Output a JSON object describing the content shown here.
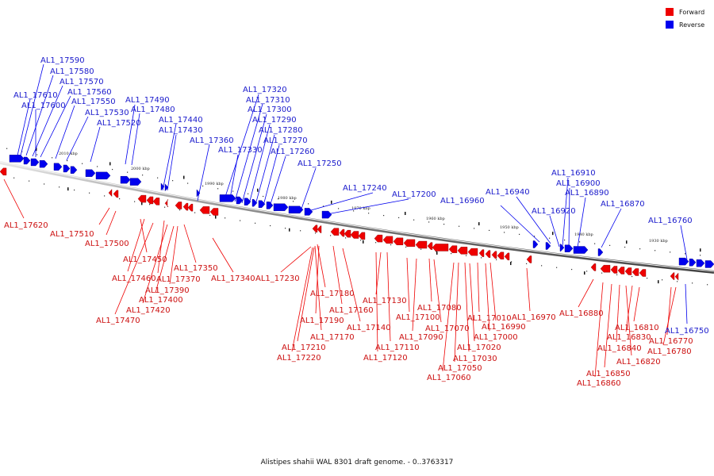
{
  "caption": "Alistipes shahii WAL 8301 draft genome. - 0..3763317",
  "legend": [
    {
      "label": "Forward",
      "color": "#ee0000"
    },
    {
      "label": "Reverse",
      "color": "#0000ee"
    }
  ],
  "scale_marks": [
    "2010 kbp",
    "2000 kbp",
    "1990 kbp",
    "1980 kbp",
    "1970 kbp",
    "1960 kbp",
    "1950 kbp",
    "1940 kbp",
    "1930 kbp"
  ],
  "reverse_genes": [
    "AL1_17590",
    "AL1_17580",
    "AL1_17570",
    "AL1_17560",
    "AL1_17610",
    "AL1_17550",
    "AL1_17600",
    "AL1_17530",
    "AL1_17520",
    "AL1_17490",
    "AL1_17480",
    "AL1_17440",
    "AL1_17430",
    "AL1_17360",
    "AL1_17320",
    "AL1_17310",
    "AL1_17300",
    "AL1_17290",
    "AL1_17280",
    "AL1_17270",
    "AL1_17260",
    "AL1_17330",
    "AL1_17250",
    "AL1_17240",
    "AL1_17200",
    "AL1_16960",
    "AL1_16940",
    "AL1_16910",
    "AL1_16900",
    "AL1_16890",
    "AL1_16920",
    "AL1_16870",
    "AL1_16760",
    "AL1_16750"
  ],
  "forward_genes": [
    "AL1_17620",
    "AL1_17510",
    "AL1_17500",
    "AL1_17450",
    "AL1_17460",
    "AL1_17350",
    "AL1_17370",
    "AL1_17340",
    "AL1_17230",
    "AL1_17390",
    "AL1_17400",
    "AL1_17420",
    "AL1_17470",
    "AL1_17180",
    "AL1_17160",
    "AL1_17190",
    "AL1_17130",
    "AL1_17080",
    "AL1_17140",
    "AL1_17100",
    "AL1_17170",
    "AL1_17090",
    "AL1_17070",
    "AL1_17010",
    "AL1_16990",
    "AL1_16970",
    "AL1_17210",
    "AL1_17110",
    "AL1_17220",
    "AL1_17120",
    "AL1_17000",
    "AL1_17020",
    "AL1_17030",
    "AL1_17050",
    "AL1_17060",
    "AL1_16880",
    "AL1_16810",
    "AL1_16830",
    "AL1_16840",
    "AL1_16820",
    "AL1_16850",
    "AL1_16860",
    "AL1_16770",
    "AL1_16780"
  ]
}
